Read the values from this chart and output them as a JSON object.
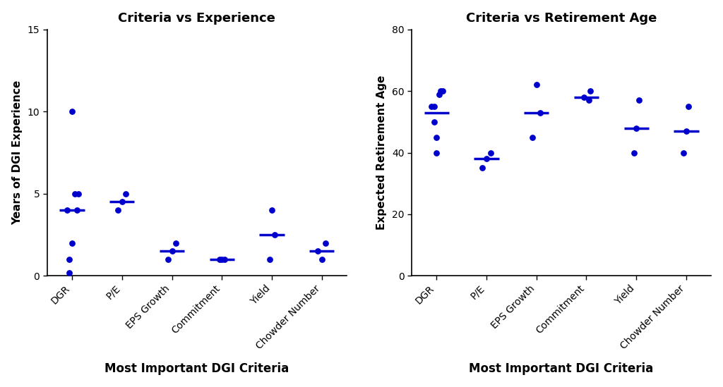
{
  "categories": [
    "DGR",
    "P/E",
    "EPS Growth",
    "Commitment",
    "Yield",
    "Chowder Number"
  ],
  "experience_data": {
    "DGR": [
      0.2,
      4.0,
      4.0,
      5.0,
      5.0,
      2.0,
      1.0,
      10.0
    ],
    "P/E": [
      4.5,
      4.0,
      5.0
    ],
    "EPS Growth": [
      1.5,
      2.0,
      1.0
    ],
    "Commitment": [
      1.0,
      1.0,
      1.0
    ],
    "Yield": [
      4.0,
      1.0,
      2.5
    ],
    "Chowder Number": [
      1.0,
      2.0,
      1.5
    ]
  },
  "experience_means": {
    "DGR": 4.0,
    "P/E": 4.5,
    "EPS Growth": 1.5,
    "Commitment": 1.0,
    "Yield": 2.5,
    "Chowder Number": 1.5
  },
  "retirement_data": {
    "DGR": [
      55.0,
      60.0,
      60.0,
      59.0,
      55.0,
      50.0,
      45.0,
      40.0
    ],
    "P/E": [
      38.0,
      35.0,
      40.0
    ],
    "EPS Growth": [
      62.0,
      45.0,
      53.0
    ],
    "Commitment": [
      58.0,
      57.0,
      60.0
    ],
    "Yield": [
      57.0,
      40.0,
      48.0
    ],
    "Chowder Number": [
      55.0,
      40.0,
      47.0
    ]
  },
  "retirement_means": {
    "DGR": 53.0,
    "P/E": 38.0,
    "EPS Growth": 53.0,
    "Commitment": 58.0,
    "Yield": 48.0,
    "Chowder Number": 47.0
  },
  "dot_color": "#0000CC",
  "mean_line_color": "#0000CC",
  "title1": "Criteria vs Experience",
  "title2": "Criteria vs Retirement Age",
  "ylabel1": "Years of DGI Experience",
  "ylabel2": "Expected Retirement Age",
  "xlabel": "Most Important DGI Criteria",
  "ylim1": [
    0,
    15
  ],
  "ylim2": [
    0,
    80
  ],
  "yticks1": [
    0,
    5,
    10,
    15
  ],
  "yticks2": [
    0,
    20,
    40,
    60,
    80
  ],
  "background_color": "#ffffff",
  "title_fontsize": 13,
  "label_fontsize": 11,
  "xlabel_fontsize": 12,
  "tick_fontsize": 10,
  "mean_line_halfwidth": 0.25,
  "mean_line_lw": 2.5,
  "dot_size": 40,
  "experience_jitter": {
    "DGR": [
      -0.05,
      -0.1,
      0.1,
      0.05,
      0.12,
      0.0,
      -0.05,
      0.0
    ],
    "P/E": [
      0.0,
      -0.08,
      0.08
    ],
    "EPS Growth": [
      0.0,
      0.08,
      -0.08
    ],
    "Commitment": [
      -0.05,
      0.05,
      0.0
    ],
    "Yield": [
      0.0,
      -0.05,
      0.05
    ],
    "Chowder Number": [
      0.0,
      0.08,
      -0.08
    ]
  },
  "retirement_jitter": {
    "DGR": [
      -0.05,
      0.08,
      0.12,
      0.05,
      -0.1,
      -0.05,
      0.0,
      0.0
    ],
    "P/E": [
      0.0,
      -0.08,
      0.08
    ],
    "EPS Growth": [
      0.0,
      -0.08,
      0.08
    ],
    "Commitment": [
      -0.05,
      0.05,
      0.08
    ],
    "Yield": [
      0.05,
      -0.05,
      0.0
    ],
    "Chowder Number": [
      0.05,
      -0.05,
      0.0
    ]
  }
}
